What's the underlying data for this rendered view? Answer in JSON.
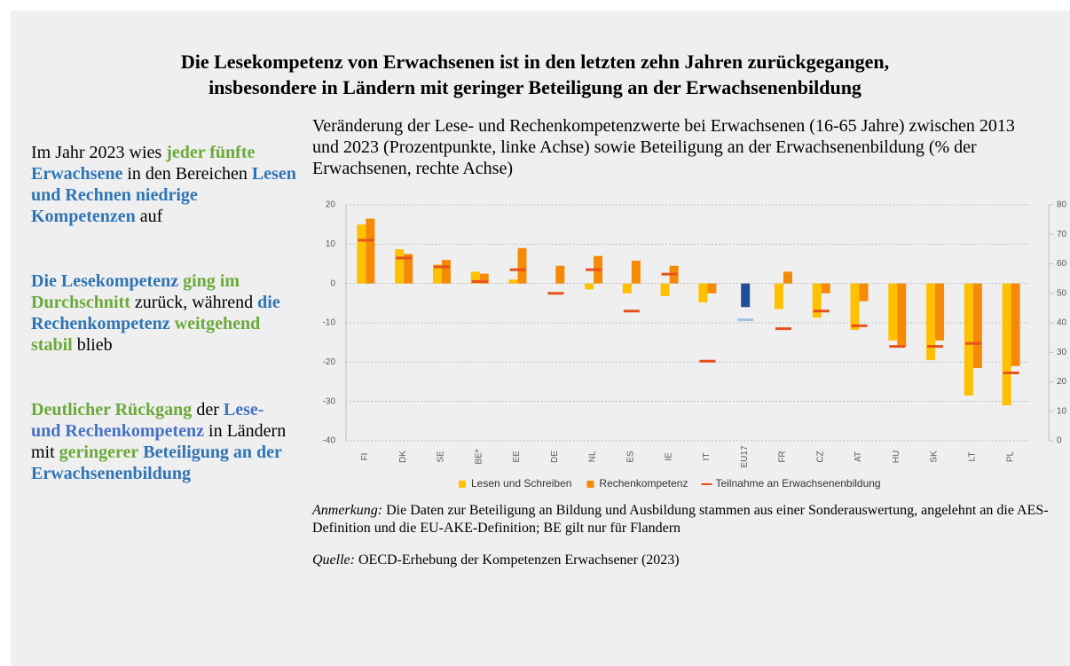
{
  "title_lines": [
    "Die Lesekompetenz von Erwachsenen ist in den letzten zehn Jahren zurückgegangen,",
    "insbesondere in Ländern mit geringer Beteiligung an der Erwachsenenbildung"
  ],
  "sidebar": [
    [
      {
        "text": "Im Jahr 2023 wies "
      },
      {
        "text": "jeder fünfte",
        "color": "#6aaa3a"
      },
      {
        "text": " "
      },
      {
        "text": "Erwachsene",
        "color": "#2e75b6"
      },
      {
        "text": " in den Bereichen "
      },
      {
        "text": "Lesen und Rechnen niedrige Kompetenzen",
        "color": "#2e75b6"
      },
      {
        "text": " auf"
      }
    ],
    [
      {
        "text": "Die Lesekompetenz",
        "color": "#2e75b6"
      },
      {
        "text": " "
      },
      {
        "text": "ging im Durchschnitt",
        "color": "#6aaa3a"
      },
      {
        "text": " zurück, während "
      },
      {
        "text": "die Rechenkompetenz",
        "color": "#2e75b6"
      },
      {
        "text": " "
      },
      {
        "text": "weitgehend stabil",
        "color": "#6aaa3a"
      },
      {
        "text": " blieb"
      }
    ],
    [
      {
        "text": "Deutlicher Rückgang",
        "color": "#6aaa3a"
      },
      {
        "text": " der "
      },
      {
        "text": "Lese- und Rechenkompetenz",
        "color": "#4472c4"
      },
      {
        "text": " in Ländern mit "
      },
      {
        "text": "geringerer",
        "color": "#6aaa3a"
      },
      {
        "text": " "
      },
      {
        "text": "Beteiligung an der Erwachsenenbildung",
        "color": "#2e75b6"
      }
    ]
  ],
  "chart_data": {
    "type": "bar",
    "title": "Veränderung der Lese- und Rechenkompetenzwerte bei Erwachsenen (16-65 Jahre) zwischen 2013 und 2023 (Prozentpunkte, linke Achse) sowie Beteiligung an der Erwachsenenbildung (% der Erwachsenen, rechte Achse)",
    "categories": [
      "FI",
      "DK",
      "SE",
      "BE*",
      "EE",
      "DE",
      "NL",
      "ES",
      "IE",
      "IT",
      "EU17",
      "FR",
      "CZ",
      "AT",
      "HU",
      "SK",
      "LT",
      "PL"
    ],
    "series": [
      {
        "name": "Lesen und Schreiben",
        "color": "#ffc000",
        "values": [
          15,
          8.7,
          4.8,
          3,
          1,
          0,
          -1.5,
          -2.5,
          -3.2,
          -4.8,
          -6,
          -6.5,
          -8.7,
          -11.8,
          -14.5,
          -19.5,
          -28.5,
          -31
        ]
      },
      {
        "name": "Rechenkompetenz",
        "color": "#f58a07",
        "values": [
          16.5,
          7.5,
          6,
          2.5,
          9,
          4.5,
          7,
          5.8,
          4.5,
          -2.5,
          null,
          3,
          -2.5,
          -4.5,
          -16,
          -14.5,
          -21.5,
          -21
        ]
      },
      {
        "name": "Teilnahme an Erwachsenenbildung",
        "color": "#e8501e",
        "axis": "y2",
        "kind": "dash",
        "values": [
          68,
          62,
          59,
          54,
          58,
          50,
          58,
          44,
          56.5,
          27,
          41,
          38,
          44,
          39,
          32,
          32,
          33,
          23
        ]
      }
    ],
    "highlight": {
      "index": 10,
      "color": "#1f4e99",
      "line_color": "#9dc3e6"
    },
    "ylim": [
      -40,
      20
    ],
    "yticks": [
      20,
      10,
      0,
      -10,
      -20,
      -30,
      -40
    ],
    "y2lim": [
      0,
      80
    ],
    "y2ticks": [
      80,
      70,
      60,
      50,
      40,
      30,
      20,
      10,
      0
    ],
    "grid": true,
    "legend": "bottom"
  },
  "notes": [
    {
      "label": "Anmerkung:",
      "text": " Die Daten zur Beteiligung an Bildung und Ausbildung stammen aus einer Sonderauswertung, angelehnt an die AES-Definition und die EU-AKE-Definition; BE gilt nur für Flandern"
    },
    {
      "label": "Quelle:",
      "text": " OECD-Erhebung der Kompetenzen Erwachsener (2023)"
    }
  ]
}
